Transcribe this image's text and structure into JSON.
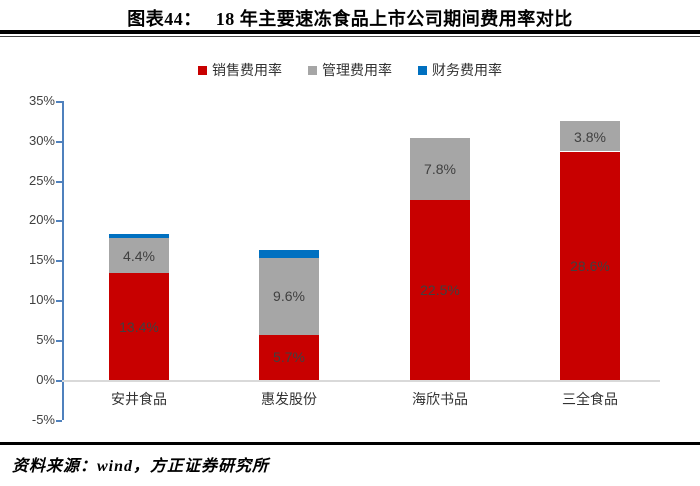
{
  "header": {
    "figure_label": "图表44：",
    "figure_title": "18 年主要速冻食品上市公司期间费用率对比"
  },
  "footer": {
    "source": "资料来源：wind，方正证券研究所"
  },
  "colors": {
    "sales_red": "#c80000",
    "admin_gray": "#a6a6a6",
    "finance_blue": "#0070c0",
    "axis_blue": "#4f81bd",
    "baseline_gray": "#d9d9d9",
    "bar_label_text": "#404040"
  },
  "chart_data": {
    "type": "bar",
    "stacked": true,
    "title": "18 年主要速冻食品上市公司期间费用率对比",
    "categories": [
      "安井食品",
      "惠发股份",
      "海欣书品",
      "三全食品"
    ],
    "series": [
      {
        "name": "销售费用率",
        "color": "#c80000",
        "values": [
          13.4,
          5.7,
          22.5,
          28.6
        ],
        "labels": [
          "13.4%",
          "5.7%",
          "22.5%",
          "28.6%"
        ]
      },
      {
        "name": "管理费用率",
        "color": "#a6a6a6",
        "values": [
          4.4,
          9.6,
          7.8,
          3.8
        ],
        "labels": [
          "4.4%",
          "9.6%",
          "7.8%",
          "3.8%"
        ]
      },
      {
        "name": "财务费用率",
        "color": "#0070c0",
        "values": [
          0.5,
          1.0,
          0.0,
          0.0
        ],
        "labels": [
          "",
          "",
          "",
          ""
        ]
      }
    ],
    "y_axis": {
      "min": -5,
      "max": 35,
      "step": 5,
      "tick_labels": [
        "35%",
        "30%",
        "25%",
        "20%",
        "15%",
        "10%",
        "5%",
        "0%",
        "-5%"
      ]
    },
    "legend_position": "top",
    "grid": "zero-line-only"
  }
}
